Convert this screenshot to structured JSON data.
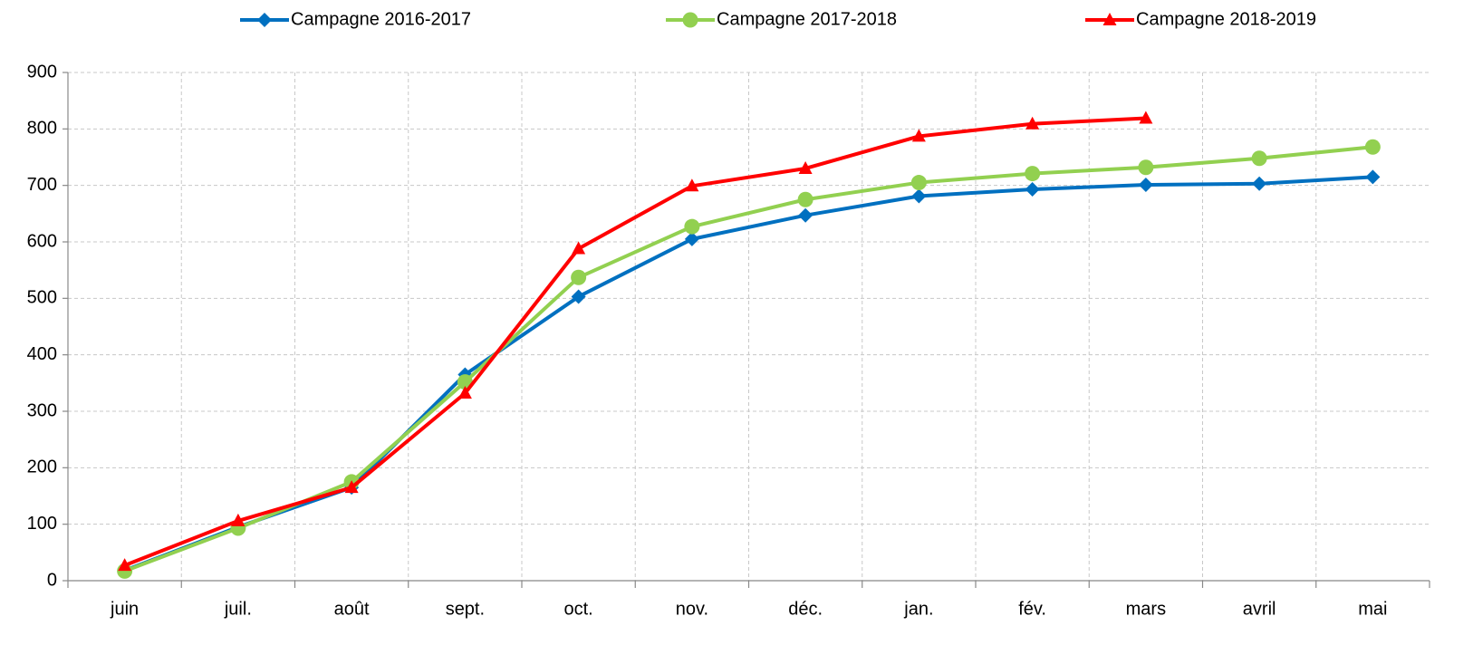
{
  "chart_data": {
    "type": "line",
    "categories": [
      "juin",
      "juil.",
      "août",
      "sept.",
      "oct.",
      "nov.",
      "déc.",
      "jan.",
      "fév.",
      "mars",
      "avril",
      "mai"
    ],
    "series": [
      {
        "name": "Campagne 2016-2017",
        "color": "#0070c0",
        "marker": "diamond",
        "values": [
          18,
          95,
          165,
          365,
          503,
          605,
          647,
          681,
          693,
          701,
          703,
          715
        ]
      },
      {
        "name": "Campagne 2017-2018",
        "color": "#92d050",
        "marker": "circle",
        "values": [
          17,
          93,
          175,
          352,
          537,
          627,
          675,
          705,
          721,
          732,
          748,
          768
        ]
      },
      {
        "name": "Campagne 2018-2019",
        "color": "#ff0000",
        "marker": "triangle",
        "values": [
          27,
          106,
          165,
          332,
          588,
          699,
          730,
          787,
          809,
          819,
          null,
          null
        ]
      }
    ],
    "ylim": [
      0,
      900
    ],
    "yticks": [
      0,
      100,
      200,
      300,
      400,
      500,
      600,
      700,
      800,
      900
    ],
    "grid": true,
    "legend": "top"
  }
}
